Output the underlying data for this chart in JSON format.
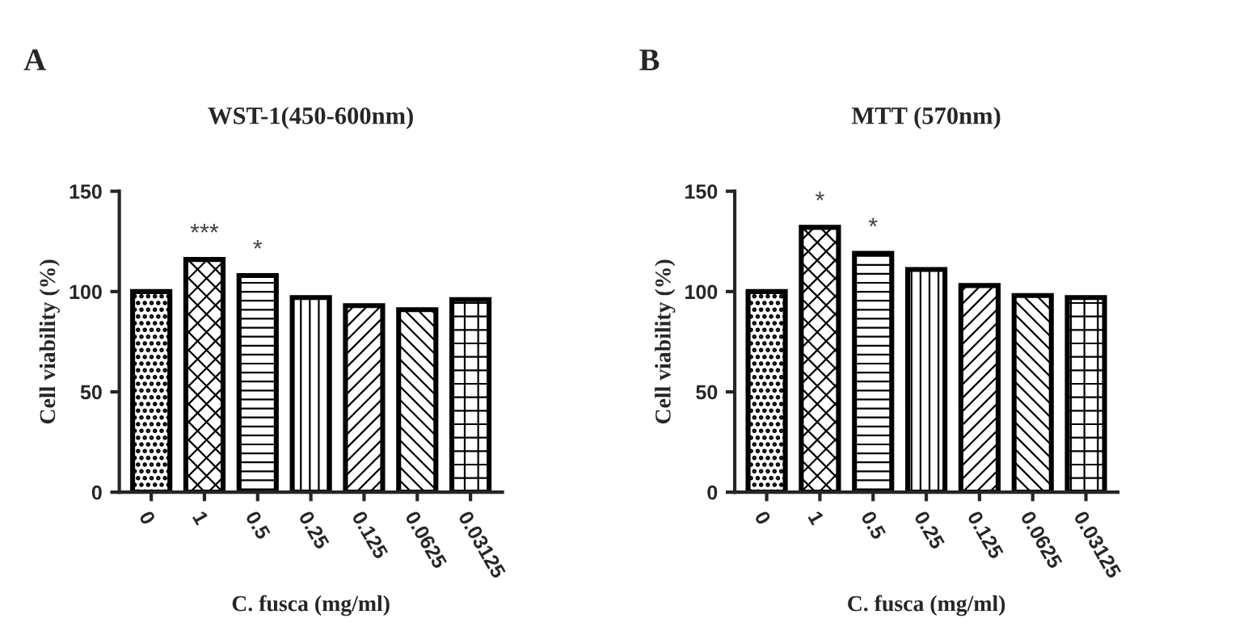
{
  "chart_data": [
    {
      "type": "bar",
      "title": "WST-1(450-600nm)",
      "xlabel": "C. fusca (mg/ml)",
      "ylabel": "Cell viability (%)",
      "categories": [
        "0",
        "1",
        "0.5",
        "0.25",
        "0.125",
        "0.0625",
        "0.03125"
      ],
      "values": [
        100,
        116,
        108,
        97,
        93,
        91,
        96
      ],
      "color": "#000000",
      "ylim": [
        0,
        150
      ],
      "yticks": [
        0,
        50,
        100,
        150
      ],
      "grid": false,
      "legend": false,
      "annotations": [
        "A",
        {
          "text": "***",
          "x": "1",
          "y": 116
        },
        {
          "text": "*",
          "x": "0.5",
          "y": 108
        }
      ]
    },
    {
      "type": "bar",
      "title": "MTT (570nm)",
      "xlabel": "C. fusca (mg/ml)",
      "ylabel": "Cell viability (%)",
      "categories": [
        "0",
        "1",
        "0.5",
        "0.25",
        "0.125",
        "0.0625",
        "0.03125"
      ],
      "values": [
        100,
        132,
        119,
        111,
        103,
        98,
        97
      ],
      "color": "#000000",
      "ylim": [
        0,
        150
      ],
      "yticks": [
        0,
        50,
        100,
        150
      ],
      "grid": false,
      "legend": false,
      "annotations": [
        "B",
        {
          "text": "*",
          "x": "1",
          "y": 132
        },
        {
          "text": "*",
          "x": "0.5",
          "y": 119
        }
      ]
    }
  ]
}
